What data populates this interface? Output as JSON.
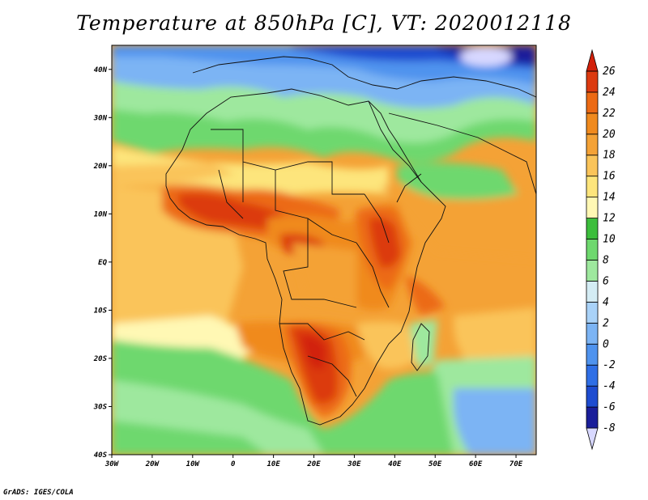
{
  "title": "Temperature at 850hPa [C], VT: 2020012118",
  "credit": "GrADS: IGES/COLA",
  "map": {
    "lon_range": [
      -30,
      75
    ],
    "lat_range": [
      -40,
      45
    ],
    "x_ticks": [
      {
        "lon": -30,
        "label": "30W"
      },
      {
        "lon": -20,
        "label": "20W"
      },
      {
        "lon": -10,
        "label": "10W"
      },
      {
        "lon": 0,
        "label": "0"
      },
      {
        "lon": 10,
        "label": "10E"
      },
      {
        "lon": 20,
        "label": "20E"
      },
      {
        "lon": 30,
        "label": "30E"
      },
      {
        "lon": 40,
        "label": "40E"
      },
      {
        "lon": 50,
        "label": "50E"
      },
      {
        "lon": 60,
        "label": "60E"
      },
      {
        "lon": 70,
        "label": "70E"
      }
    ],
    "y_ticks": [
      {
        "lat": 40,
        "label": "40N"
      },
      {
        "lat": 30,
        "label": "30N"
      },
      {
        "lat": 20,
        "label": "20N"
      },
      {
        "lat": 10,
        "label": "10N"
      },
      {
        "lat": 0,
        "label": "EQ"
      },
      {
        "lat": -10,
        "label": "10S"
      },
      {
        "lat": -20,
        "label": "20S"
      },
      {
        "lat": -30,
        "label": "30S"
      },
      {
        "lat": -40,
        "label": "40S"
      }
    ]
  },
  "colorbar": {
    "colors": [
      "#d8d8ff",
      "#1a1e9a",
      "#1e4cd0",
      "#2f6fe6",
      "#4f93ee",
      "#7cb4f4",
      "#a9d2f8",
      "#d4ecf4",
      "#9ee89e",
      "#6ed86e",
      "#3cbe3c",
      "#fff8b4",
      "#fde57c",
      "#fac45a",
      "#f4a236",
      "#f08a1e",
      "#ec6a14",
      "#dc3a10",
      "#d2200a"
    ],
    "labels": [
      "-8",
      "-6",
      "-4",
      "-2",
      "0",
      "2",
      "4",
      "6",
      "8",
      "10",
      "12",
      "14",
      "16",
      "18",
      "20",
      "22",
      "24",
      "26"
    ]
  }
}
